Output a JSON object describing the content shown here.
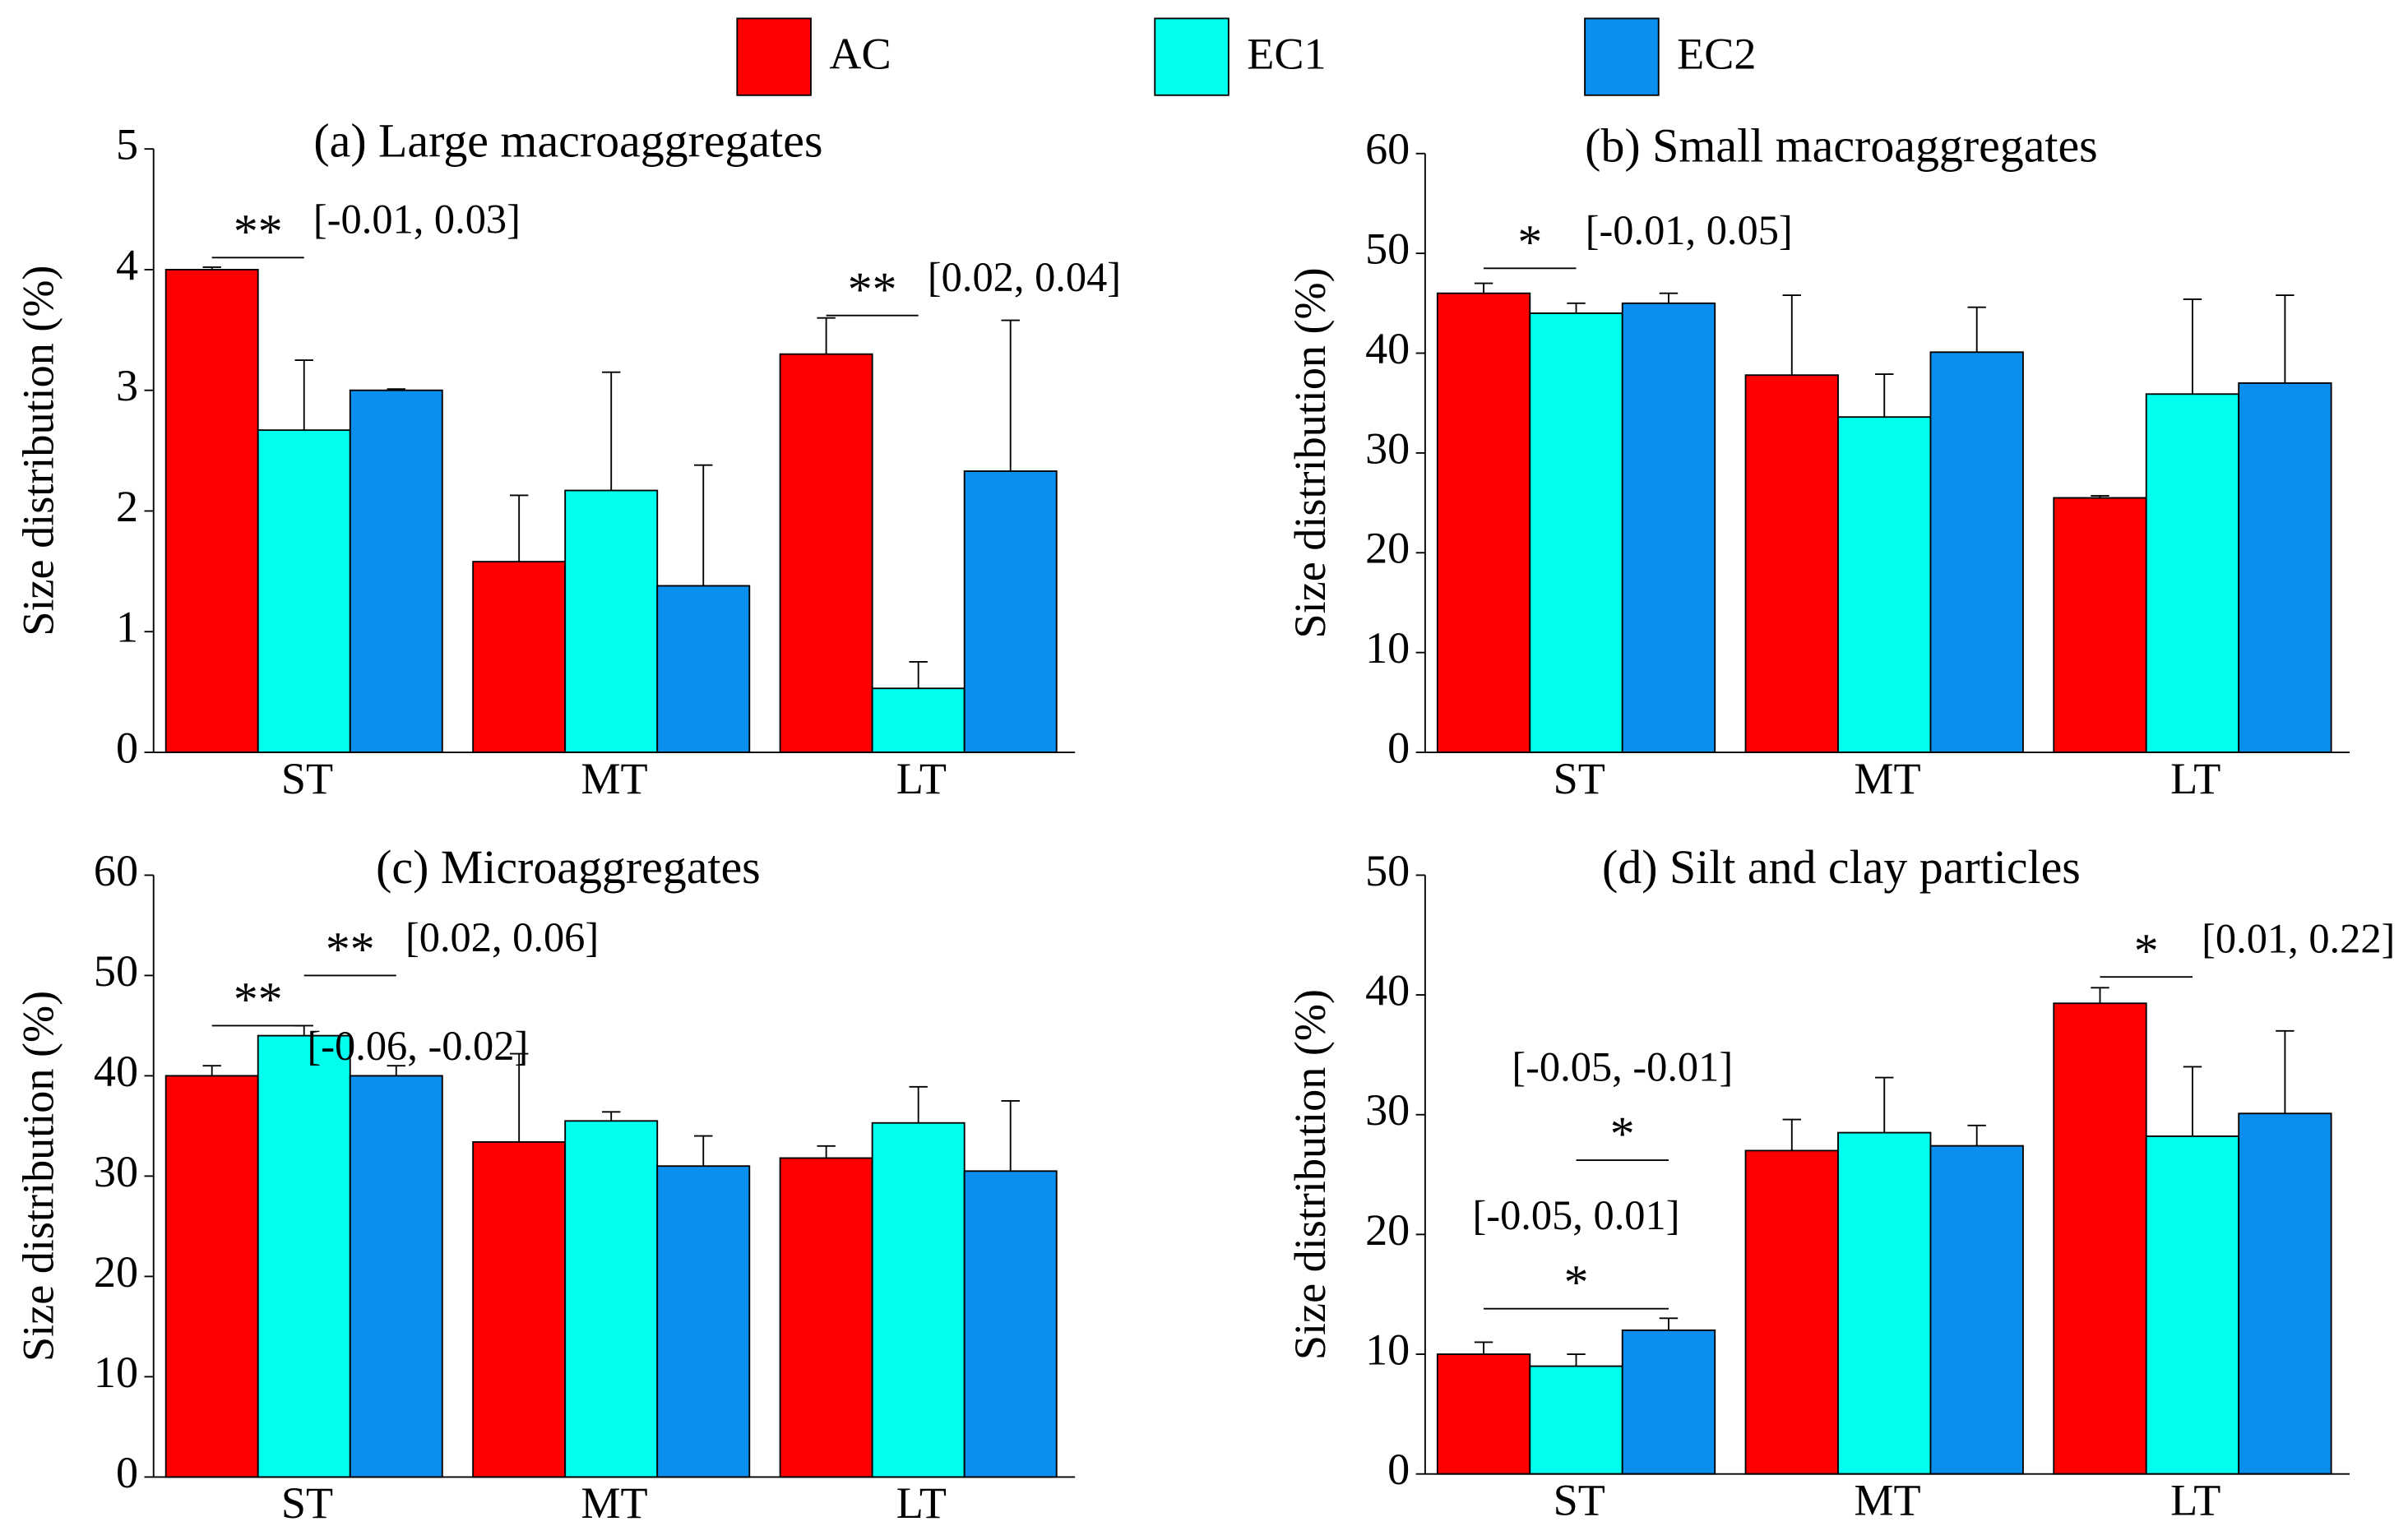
{
  "legend": [
    {
      "name": "AC",
      "color": "#ff0000"
    },
    {
      "name": "EC1",
      "color": "#00ffee"
    },
    {
      "name": "EC2",
      "color": "#0a8fef"
    }
  ],
  "chart_data": [
    {
      "type": "bar",
      "title": "(a) Large macroaggregates",
      "ylabel": "Size distribution (%)",
      "categories": [
        "ST",
        "MT",
        "LT"
      ],
      "ylim": [
        0,
        5
      ],
      "yticks": [
        0,
        1,
        2,
        3,
        4,
        5
      ],
      "series": [
        {
          "values": [
            4.0,
            1.58,
            3.3
          ],
          "errors": [
            0.02,
            0.55,
            0.3
          ]
        },
        {
          "values": [
            2.67,
            2.17,
            0.53
          ],
          "errors": [
            0.58,
            0.98,
            0.22
          ]
        },
        {
          "values": [
            3.0,
            1.38,
            2.33
          ],
          "errors": [
            0.01,
            1.0,
            1.25
          ]
        }
      ],
      "annotations": [
        {
          "stars": "**",
          "label": "[-0.01, 0.03]"
        },
        {
          "stars": "**",
          "label": "[0.02, 0.04]"
        }
      ]
    },
    {
      "type": "bar",
      "title": "(b) Small macroaggregates",
      "ylabel": "Size distribution (%)",
      "categories": [
        "ST",
        "MT",
        "LT"
      ],
      "ylim": [
        0,
        60
      ],
      "yticks": [
        0,
        10,
        20,
        30,
        40,
        50,
        60
      ],
      "series": [
        {
          "values": [
            46,
            37.8,
            25.5
          ],
          "errors": [
            1,
            8,
            0.2
          ]
        },
        {
          "values": [
            44,
            33.6,
            35.9
          ],
          "errors": [
            1,
            4.3,
            9.5
          ]
        },
        {
          "values": [
            45,
            40.1,
            37
          ],
          "errors": [
            1,
            4.5,
            8.8
          ]
        }
      ],
      "annotations": [
        {
          "stars": "*",
          "label": "[-0.01, 0.05]"
        }
      ]
    },
    {
      "type": "bar",
      "title": "(c) Microaggregates",
      "ylabel": "Size distribution (%)",
      "categories": [
        "ST",
        "MT",
        "LT"
      ],
      "ylim": [
        0,
        60
      ],
      "yticks": [
        0,
        10,
        20,
        30,
        40,
        50,
        60
      ],
      "series": [
        {
          "values": [
            40,
            33.4,
            31.8
          ],
          "errors": [
            1,
            8.8,
            1.2
          ]
        },
        {
          "values": [
            44,
            35.5,
            35.3
          ],
          "errors": [
            1,
            0.9,
            3.6
          ]
        },
        {
          "values": [
            40,
            31,
            30.5
          ],
          "errors": [
            1,
            3,
            7
          ]
        }
      ],
      "annotations": [
        {
          "stars": "**",
          "label": "[-0.06, -0.02]"
        },
        {
          "stars": "**",
          "label": "[0.02, 0.06]"
        }
      ]
    },
    {
      "type": "bar",
      "title": "(d) Silt and clay particles",
      "ylabel": "Size distribution (%)",
      "categories": [
        "ST",
        "MT",
        "LT"
      ],
      "ylim": [
        0,
        50
      ],
      "yticks": [
        0,
        10,
        20,
        30,
        40,
        50
      ],
      "series": [
        {
          "values": [
            10,
            27,
            39.3
          ],
          "errors": [
            1,
            2.6,
            1.3
          ]
        },
        {
          "values": [
            9,
            28.5,
            28.2
          ],
          "errors": [
            1,
            4.6,
            5.8
          ]
        },
        {
          "values": [
            12,
            27.4,
            30.1
          ],
          "errors": [
            1,
            1.7,
            6.9
          ]
        }
      ],
      "annotations": [
        {
          "stars": "*",
          "label": "[0.01, 0.22]"
        },
        {
          "stars": "*",
          "label": "[-0.05, -0.01]"
        },
        {
          "stars": "*",
          "label": "[-0.05, 0.01]"
        }
      ]
    }
  ]
}
